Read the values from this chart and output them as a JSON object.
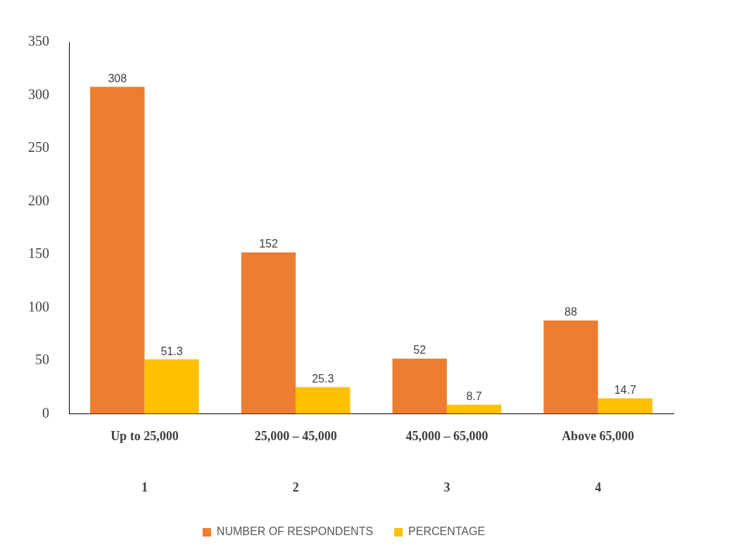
{
  "chart_data": {
    "type": "bar",
    "categories": [
      "Up to 25,000",
      "25,000 – 45,000",
      "45,000 – 65,000",
      "Above 65,000"
    ],
    "series": [
      {
        "name": "NUMBER OF RESPONDENTS",
        "color": "#ed7d31",
        "values": [
          308,
          152,
          52,
          88
        ]
      },
      {
        "name": "PERCENTAGE",
        "color": "#ffc000",
        "values": [
          51.3,
          25.3,
          8.7,
          14.7
        ]
      }
    ],
    "ylim": [
      0,
      350
    ],
    "yticks": [
      0,
      50,
      100,
      150,
      200,
      250,
      300,
      350
    ],
    "grid": false,
    "legend": "bottom",
    "data_labels": true,
    "annotations": [
      "1",
      "2",
      "3",
      "4"
    ]
  }
}
